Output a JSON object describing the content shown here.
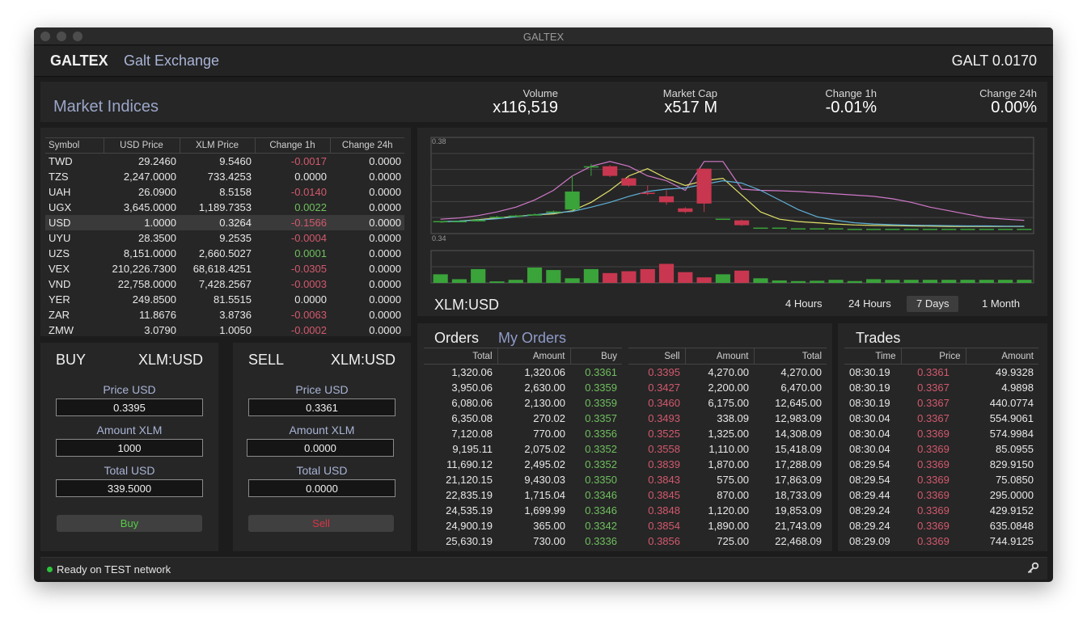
{
  "window": {
    "title": "GALTEX"
  },
  "header": {
    "brand": "GALTEX",
    "subtitle": "Galt Exchange",
    "price": "GALT 0.0170"
  },
  "market": {
    "title": "Market Indices",
    "stats": [
      {
        "label": "Volume",
        "value": "x116,519"
      },
      {
        "label": "Market Cap",
        "value": "x517 M"
      },
      {
        "label": "Change 1h",
        "value": "-0.01%"
      },
      {
        "label": "Change 24h",
        "value": "0.00%"
      }
    ]
  },
  "indices": {
    "headers": [
      "Symbol",
      "USD Price",
      "XLM Price",
      "Change 1h",
      "Change 24h"
    ],
    "selected": "USD",
    "rows": [
      {
        "symbol": "TWD",
        "usd": "29.2460",
        "xlm": "9.5460",
        "ch1h": "-0.0017",
        "ch24h": "0.0000",
        "dir": "down"
      },
      {
        "symbol": "TZS",
        "usd": "2,247.0000",
        "xlm": "733.4253",
        "ch1h": "0.0000",
        "ch24h": "0.0000",
        "dir": "flat"
      },
      {
        "symbol": "UAH",
        "usd": "26.0900",
        "xlm": "8.5158",
        "ch1h": "-0.0140",
        "ch24h": "0.0000",
        "dir": "down"
      },
      {
        "symbol": "UGX",
        "usd": "3,645.0000",
        "xlm": "1,189.7353",
        "ch1h": "0.0022",
        "ch24h": "0.0000",
        "dir": "up"
      },
      {
        "symbol": "USD",
        "usd": "1.0000",
        "xlm": "0.3264",
        "ch1h": "-0.1566",
        "ch24h": "0.0000",
        "dir": "down"
      },
      {
        "symbol": "UYU",
        "usd": "28.3500",
        "xlm": "9.2535",
        "ch1h": "-0.0004",
        "ch24h": "0.0000",
        "dir": "down"
      },
      {
        "symbol": "UZS",
        "usd": "8,151.0000",
        "xlm": "2,660.5027",
        "ch1h": "0.0001",
        "ch24h": "0.0000",
        "dir": "up"
      },
      {
        "symbol": "VEX",
        "usd": "210,226.7300",
        "xlm": "68,618.4251",
        "ch1h": "-0.0305",
        "ch24h": "0.0000",
        "dir": "down"
      },
      {
        "symbol": "VND",
        "usd": "22,758.0000",
        "xlm": "7,428.2567",
        "ch1h": "-0.0003",
        "ch24h": "0.0000",
        "dir": "down"
      },
      {
        "symbol": "YER",
        "usd": "249.8500",
        "xlm": "81.5515",
        "ch1h": "0.0000",
        "ch24h": "0.0000",
        "dir": "flat"
      },
      {
        "symbol": "ZAR",
        "usd": "11.8676",
        "xlm": "3.8736",
        "ch1h": "-0.0063",
        "ch24h": "0.0000",
        "dir": "down"
      },
      {
        "symbol": "ZMW",
        "usd": "3.0790",
        "xlm": "1.0050",
        "ch1h": "-0.0002",
        "ch24h": "0.0000",
        "dir": "down"
      }
    ]
  },
  "chart": {
    "pair": "XLM:USD",
    "ranges": [
      "4 Hours",
      "24 Hours",
      "7 Days",
      "1 Month"
    ],
    "active_range": "7 Days",
    "colors": {
      "up": "#3aa33a",
      "down": "#c8374f",
      "line_pink": "#d078c8",
      "line_yellow": "#e1e06a",
      "line_blue": "#5fb0d8"
    }
  },
  "chart_data": {
    "type": "candlestick",
    "ylim": [
      0.34,
      0.38
    ],
    "y_tick_labels": [
      "0.38",
      "0.34"
    ],
    "candles": [
      {
        "open": 0.3452,
        "close": 0.3452,
        "high": 0.3452,
        "low": 0.3452,
        "volume": 0.28
      },
      {
        "open": 0.3452,
        "close": 0.3452,
        "high": 0.3452,
        "low": 0.3452,
        "volume": 0.12
      },
      {
        "open": 0.3456,
        "close": 0.3456,
        "high": 0.3462,
        "low": 0.345,
        "volume": 0.45
      },
      {
        "open": 0.347,
        "close": 0.347,
        "high": 0.3474,
        "low": 0.3466,
        "volume": 0.05
      },
      {
        "open": 0.3475,
        "close": 0.3475,
        "high": 0.3478,
        "low": 0.3472,
        "volume": 0.1
      },
      {
        "open": 0.348,
        "close": 0.348,
        "high": 0.3484,
        "low": 0.3476,
        "volume": 0.5
      },
      {
        "open": 0.3492,
        "close": 0.3492,
        "high": 0.3496,
        "low": 0.3488,
        "volume": 0.42
      },
      {
        "open": 0.35,
        "close": 0.3575,
        "high": 0.364,
        "low": 0.3495,
        "volume": 0.15
      },
      {
        "open": 0.3675,
        "close": 0.368,
        "high": 0.369,
        "low": 0.364,
        "volume": 0.45
      },
      {
        "open": 0.368,
        "close": 0.364,
        "high": 0.3685,
        "low": 0.3635,
        "volume": 0.32
      },
      {
        "open": 0.363,
        "close": 0.36,
        "high": 0.3635,
        "low": 0.3595,
        "volume": 0.38
      },
      {
        "open": 0.357,
        "close": 0.3565,
        "high": 0.36,
        "low": 0.356,
        "volume": 0.45
      },
      {
        "open": 0.3555,
        "close": 0.353,
        "high": 0.358,
        "low": 0.352,
        "volume": 0.62
      },
      {
        "open": 0.3505,
        "close": 0.349,
        "high": 0.351,
        "low": 0.3485,
        "volume": 0.35
      },
      {
        "open": 0.367,
        "close": 0.3525,
        "high": 0.367,
        "low": 0.349,
        "volume": 0.18
      },
      {
        "open": 0.3462,
        "close": 0.3462,
        "high": 0.3462,
        "low": 0.3462,
        "volume": 0.28
      },
      {
        "open": 0.3455,
        "close": 0.3435,
        "high": 0.3458,
        "low": 0.3432,
        "volume": 0.4
      },
      {
        "open": 0.3425,
        "close": 0.3425,
        "high": 0.3425,
        "low": 0.3425,
        "volume": 0.15
      },
      {
        "open": 0.3425,
        "close": 0.3425,
        "high": 0.3425,
        "low": 0.3425,
        "volume": 0.08
      },
      {
        "open": 0.3422,
        "close": 0.3422,
        "high": 0.3422,
        "low": 0.3422,
        "volume": 0.06
      },
      {
        "open": 0.3422,
        "close": 0.3422,
        "high": 0.3422,
        "low": 0.3422,
        "volume": 0.07
      },
      {
        "open": 0.3422,
        "close": 0.3422,
        "high": 0.3422,
        "low": 0.3422,
        "volume": 0.1
      },
      {
        "open": 0.342,
        "close": 0.342,
        "high": 0.342,
        "low": 0.342,
        "volume": 0.06
      },
      {
        "open": 0.342,
        "close": 0.342,
        "high": 0.342,
        "low": 0.342,
        "volume": 0.12
      },
      {
        "open": 0.342,
        "close": 0.342,
        "high": 0.342,
        "low": 0.342,
        "volume": 0.1
      },
      {
        "open": 0.342,
        "close": 0.342,
        "high": 0.342,
        "low": 0.342,
        "volume": 0.1
      },
      {
        "open": 0.342,
        "close": 0.342,
        "high": 0.342,
        "low": 0.342,
        "volume": 0.1
      },
      {
        "open": 0.342,
        "close": 0.342,
        "high": 0.342,
        "low": 0.342,
        "volume": 0.1
      },
      {
        "open": 0.342,
        "close": 0.342,
        "high": 0.342,
        "low": 0.342,
        "volume": 0.1
      },
      {
        "open": 0.342,
        "close": 0.342,
        "high": 0.342,
        "low": 0.342,
        "volume": 0.1
      },
      {
        "open": 0.342,
        "close": 0.342,
        "high": 0.342,
        "low": 0.342,
        "volume": 0.1
      },
      {
        "open": 0.342,
        "close": 0.342,
        "high": 0.342,
        "low": 0.342,
        "volume": 0.1
      }
    ],
    "lines": [
      {
        "color": "#d078c8",
        "values": [
          0.346,
          0.3465,
          0.3475,
          0.349,
          0.351,
          0.354,
          0.358,
          0.364,
          0.368,
          0.37,
          0.368,
          0.364,
          0.362,
          0.358,
          0.37,
          0.37,
          0.3585,
          0.358,
          0.3578,
          0.3575,
          0.357,
          0.3565,
          0.356,
          0.3555,
          0.3545,
          0.353,
          0.351,
          0.3495,
          0.348,
          0.3466,
          0.346,
          0.3455
        ]
      },
      {
        "color": "#e1e06a",
        "values": [
          0.3448,
          0.3452,
          0.3458,
          0.3465,
          0.3472,
          0.3478,
          0.3482,
          0.3495,
          0.353,
          0.358,
          0.364,
          0.367,
          0.363,
          0.36,
          0.362,
          0.363,
          0.356,
          0.349,
          0.346,
          0.345,
          0.3445,
          0.344,
          0.3436,
          0.3434,
          0.3433,
          0.3432,
          0.3431,
          0.343,
          0.343,
          0.343,
          0.343,
          0.343
        ]
      },
      {
        "color": "#5fb0d8",
        "values": [
          0.345,
          0.3452,
          0.3456,
          0.3462,
          0.347,
          0.3478,
          0.3486,
          0.3492,
          0.351,
          0.353,
          0.3555,
          0.3575,
          0.3585,
          0.359,
          0.3605,
          0.362,
          0.361,
          0.358,
          0.354,
          0.35,
          0.347,
          0.3455,
          0.3445,
          0.344,
          0.3437,
          0.3435,
          0.3434,
          0.3433,
          0.3432,
          0.3432,
          0.3431,
          0.3431
        ]
      }
    ]
  },
  "buy": {
    "side": "BUY",
    "pair": "XLM:USD",
    "price_label": "Price USD",
    "price": "0.3395",
    "amount_label": "Amount XLM",
    "amount": "1000",
    "total_label": "Total USD",
    "total": "339.5000",
    "button": "Buy"
  },
  "sell": {
    "side": "SELL",
    "pair": "XLM:USD",
    "price_label": "Price USD",
    "price": "0.3361",
    "amount_label": "Amount XLM",
    "amount": "0.0000",
    "total_label": "Total USD",
    "total": "0.0000",
    "button": "Sell"
  },
  "orders": {
    "title": "Orders",
    "my_orders_tab": "My Orders",
    "buy_headers": [
      "Total",
      "Amount",
      "Buy"
    ],
    "sell_headers": [
      "Sell",
      "Amount",
      "Total"
    ],
    "bids": [
      {
        "total": "1,320.06",
        "amount": "1,320.06",
        "price": "0.3361"
      },
      {
        "total": "3,950.06",
        "amount": "2,630.00",
        "price": "0.3359"
      },
      {
        "total": "6,080.06",
        "amount": "2,130.00",
        "price": "0.3359"
      },
      {
        "total": "6,350.08",
        "amount": "270.02",
        "price": "0.3357"
      },
      {
        "total": "7,120.08",
        "amount": "770.00",
        "price": "0.3356"
      },
      {
        "total": "9,195.11",
        "amount": "2,075.02",
        "price": "0.3352"
      },
      {
        "total": "11,690.12",
        "amount": "2,495.02",
        "price": "0.3352"
      },
      {
        "total": "21,120.15",
        "amount": "9,430.03",
        "price": "0.3350"
      },
      {
        "total": "22,835.19",
        "amount": "1,715.04",
        "price": "0.3346"
      },
      {
        "total": "24,535.19",
        "amount": "1,699.99",
        "price": "0.3346"
      },
      {
        "total": "24,900.19",
        "amount": "365.00",
        "price": "0.3342"
      },
      {
        "total": "25,630.19",
        "amount": "730.00",
        "price": "0.3336"
      }
    ],
    "asks": [
      {
        "price": "0.3395",
        "amount": "4,270.00",
        "total": "4,270.00"
      },
      {
        "price": "0.3427",
        "amount": "2,200.00",
        "total": "6,470.00"
      },
      {
        "price": "0.3460",
        "amount": "6,175.00",
        "total": "12,645.00"
      },
      {
        "price": "0.3493",
        "amount": "338.09",
        "total": "12,983.09"
      },
      {
        "price": "0.3525",
        "amount": "1,325.00",
        "total": "14,308.09"
      },
      {
        "price": "0.3558",
        "amount": "1,110.00",
        "total": "15,418.09"
      },
      {
        "price": "0.3839",
        "amount": "1,870.00",
        "total": "17,288.09"
      },
      {
        "price": "0.3843",
        "amount": "575.00",
        "total": "17,863.09"
      },
      {
        "price": "0.3845",
        "amount": "870.00",
        "total": "18,733.09"
      },
      {
        "price": "0.3848",
        "amount": "1,120.00",
        "total": "19,853.09"
      },
      {
        "price": "0.3854",
        "amount": "1,890.00",
        "total": "21,743.09"
      },
      {
        "price": "0.3856",
        "amount": "725.00",
        "total": "22,468.09"
      }
    ]
  },
  "trades": {
    "title": "Trades",
    "headers": [
      "Time",
      "Price",
      "Amount"
    ],
    "rows": [
      {
        "time": "08:30.19",
        "price": "0.3361",
        "amount": "49.9328"
      },
      {
        "time": "08:30.19",
        "price": "0.3367",
        "amount": "4.9898"
      },
      {
        "time": "08:30.19",
        "price": "0.3367",
        "amount": "440.0774"
      },
      {
        "time": "08:30.04",
        "price": "0.3367",
        "amount": "554.9061"
      },
      {
        "time": "08:30.04",
        "price": "0.3369",
        "amount": "574.9984"
      },
      {
        "time": "08:30.04",
        "price": "0.3369",
        "amount": "85.0955"
      },
      {
        "time": "08:29.54",
        "price": "0.3369",
        "amount": "829.9150"
      },
      {
        "time": "08:29.54",
        "price": "0.3369",
        "amount": "75.0850"
      },
      {
        "time": "08:29.44",
        "price": "0.3369",
        "amount": "295.0000"
      },
      {
        "time": "08:29.24",
        "price": "0.3369",
        "amount": "429.9152"
      },
      {
        "time": "08:29.24",
        "price": "0.3369",
        "amount": "635.0848"
      },
      {
        "time": "08:29.09",
        "price": "0.3369",
        "amount": "744.9125"
      }
    ]
  },
  "status": {
    "text": "Ready on TEST network",
    "dot_color": "#2dc53c",
    "icon": "key-icon"
  }
}
